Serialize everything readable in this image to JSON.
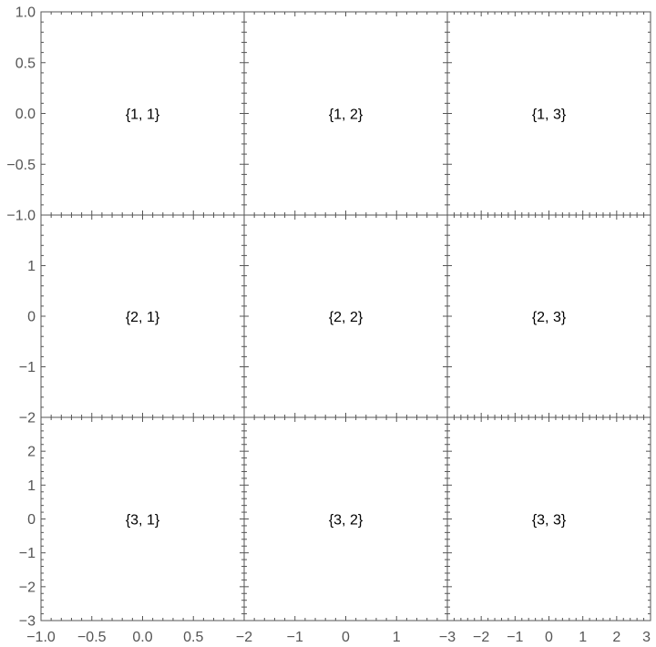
{
  "chart_data": {
    "type": "scatter",
    "layout": "3x3 grid of panels",
    "grid": false,
    "panels": [
      {
        "row": 1,
        "col": 1,
        "label": "{1, 1}",
        "xlim": [
          -1,
          1
        ],
        "ylim": [
          -1,
          1
        ]
      },
      {
        "row": 1,
        "col": 2,
        "label": "{1, 2}",
        "xlim": [
          -2,
          2
        ],
        "ylim": [
          -1,
          1
        ]
      },
      {
        "row": 1,
        "col": 3,
        "label": "{1, 3}",
        "xlim": [
          -3,
          3
        ],
        "ylim": [
          -1,
          1
        ]
      },
      {
        "row": 2,
        "col": 1,
        "label": "{2, 1}",
        "xlim": [
          -1,
          1
        ],
        "ylim": [
          -2,
          2
        ]
      },
      {
        "row": 2,
        "col": 2,
        "label": "{2, 2}",
        "xlim": [
          -2,
          2
        ],
        "ylim": [
          -2,
          2
        ]
      },
      {
        "row": 2,
        "col": 3,
        "label": "{2, 3}",
        "xlim": [
          -3,
          3
        ],
        "ylim": [
          -2,
          2
        ]
      },
      {
        "row": 3,
        "col": 1,
        "label": "{3, 1}",
        "xlim": [
          -1,
          1
        ],
        "ylim": [
          -3,
          3
        ]
      },
      {
        "row": 3,
        "col": 2,
        "label": "{3, 2}",
        "xlim": [
          -2,
          2
        ],
        "ylim": [
          -3,
          3
        ]
      },
      {
        "row": 3,
        "col": 3,
        "label": "{3, 3}",
        "xlim": [
          -3,
          3
        ],
        "ylim": [
          -3,
          3
        ]
      }
    ],
    "y_axes": [
      {
        "row": 1,
        "ticks": [
          "1.0",
          "0.5",
          "0.0",
          "−0.5",
          "−1.0"
        ],
        "values": [
          1,
          0.5,
          0,
          -0.5,
          -1
        ]
      },
      {
        "row": 2,
        "ticks": [
          "1",
          "0",
          "−1",
          "−2"
        ],
        "values": [
          1,
          0,
          -1,
          -2
        ]
      },
      {
        "row": 3,
        "ticks": [
          "2",
          "1",
          "0",
          "−1",
          "−2",
          "−3"
        ],
        "values": [
          2,
          1,
          0,
          -1,
          -2,
          -3
        ]
      }
    ],
    "x_axes": [
      {
        "col": 1,
        "ticks": [
          "−1.0",
          "−0.5",
          "0.0",
          "0.5"
        ],
        "values": [
          -1,
          -0.5,
          0,
          0.5
        ]
      },
      {
        "col": 2,
        "ticks": [
          "−2",
          "−1",
          "0",
          "1"
        ],
        "values": [
          -2,
          -1,
          0,
          1
        ]
      },
      {
        "col": 3,
        "ticks": [
          "−3",
          "−2",
          "−1",
          "0",
          "1",
          "2",
          "3"
        ],
        "values": [
          -3,
          -2,
          -1,
          0,
          1,
          2,
          3
        ]
      }
    ]
  },
  "colors": {
    "axis": "#555555",
    "text": "#000000",
    "background": "#ffffff"
  }
}
